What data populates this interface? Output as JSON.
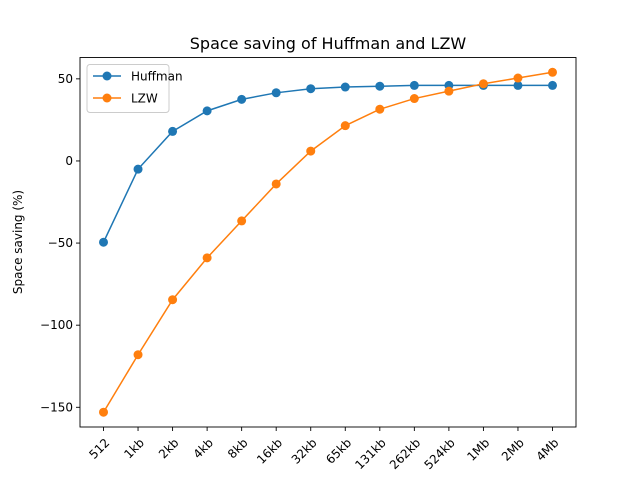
{
  "chart_data": {
    "type": "line",
    "title": "Space saving of Huffman and LZW",
    "xlabel": "",
    "ylabel": "Space saving (%)",
    "categories": [
      "512",
      "1kb",
      "2kb",
      "4kb",
      "8kb",
      "16kb",
      "32kb",
      "65kb",
      "131kb",
      "262kb",
      "524kb",
      "1Mb",
      "2Mb",
      "4Mb"
    ],
    "y_ticks": [
      50,
      0,
      -50,
      -100,
      -150
    ],
    "y_tick_labels": [
      "50",
      "0",
      "−50",
      "−100",
      "−150"
    ],
    "ylim": [
      -162,
      63
    ],
    "legend_position": "top-left",
    "grid": false,
    "series": [
      {
        "name": "Huffman",
        "color": "#1f77b4",
        "marker": "circle",
        "values": [
          -49.5,
          -5,
          18,
          30.5,
          37.5,
          41.5,
          44,
          45,
          45.5,
          46,
          46,
          46,
          46,
          46
        ]
      },
      {
        "name": "LZW",
        "color": "#ff7f0e",
        "marker": "circle",
        "values": [
          -153,
          -118,
          -84.5,
          -59,
          -36.5,
          -14,
          6,
          21.5,
          31.5,
          38,
          42.5,
          47,
          50.5,
          54
        ]
      }
    ]
  }
}
